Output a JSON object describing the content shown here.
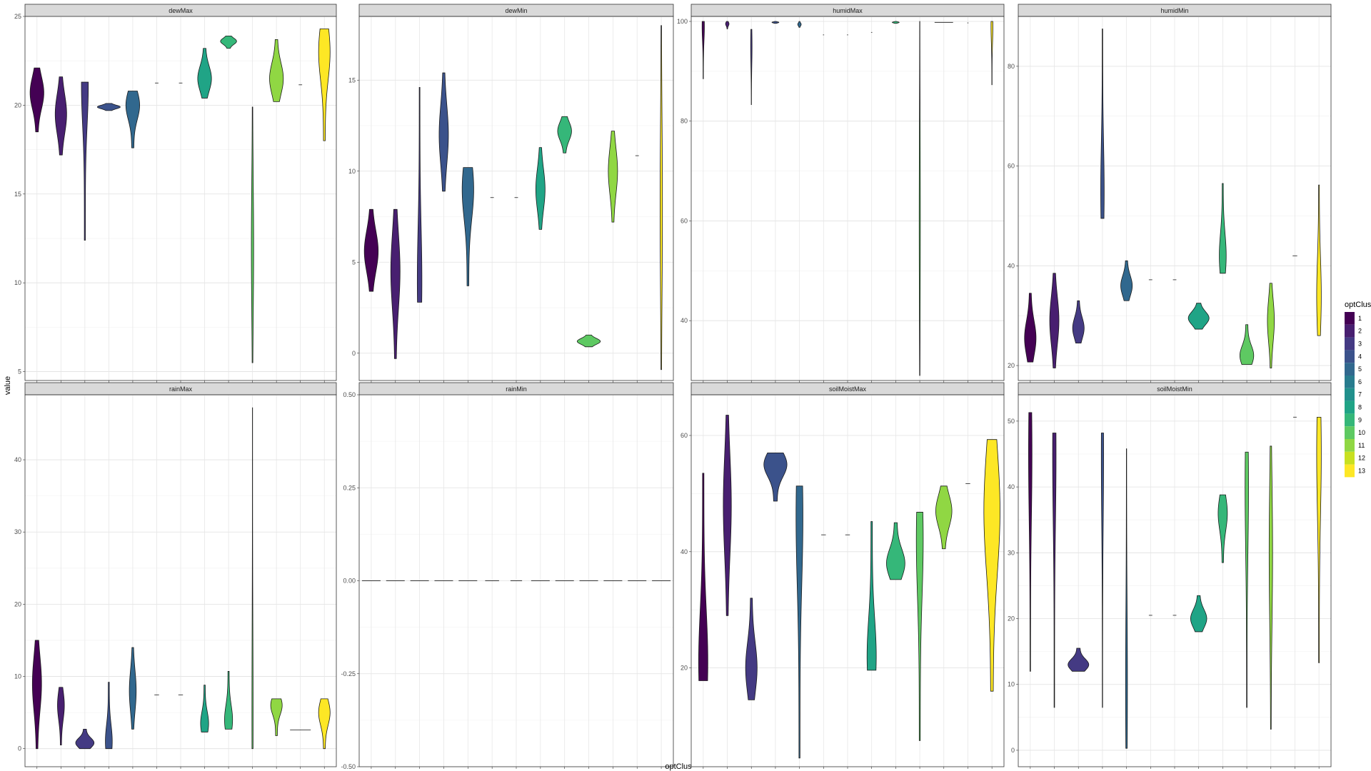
{
  "chart_data": {
    "type": "violin",
    "facet_variable": "variable",
    "xlabel": "optClus",
    "ylabel": "value",
    "legend": {
      "title": "optClus",
      "position": "right",
      "labels": [
        "1",
        "2",
        "3",
        "4",
        "5",
        "6",
        "7",
        "8",
        "9",
        "10",
        "11",
        "12",
        "13"
      ]
    },
    "clusters": [
      1,
      2,
      3,
      4,
      5,
      6,
      7,
      8,
      9,
      10,
      11,
      12,
      13
    ],
    "colors": [
      "#440154",
      "#481A6C",
      "#472F7D",
      "#414487",
      "#39568C",
      "#31688E",
      "#2A788E",
      "#23888E",
      "#1F988B",
      "#22A884",
      "#35B779",
      "#54C568",
      "#7AD151",
      "#A5DB36",
      "#D2E21B",
      "#FDE725"
    ],
    "cluster_colors": [
      "#440154",
      "#481F70",
      "#443A83",
      "#3B528B",
      "#31688E",
      "#287C8E",
      "#21908C",
      "#20A486",
      "#35B779",
      "#5EC962",
      "#90D743",
      "#C8E020",
      "#FDE725"
    ],
    "grid": true,
    "panels": [
      {
        "title": "dewMax",
        "ylim": [
          4.5,
          25
        ],
        "yticks": [
          5,
          10,
          15,
          20,
          25
        ],
        "yticklabels": [
          "5",
          "10",
          "15",
          "20",
          "25"
        ],
        "violins": [
          {
            "c": 1,
            "lo": 18.5,
            "hi": 22.1,
            "w": 0.6,
            "mode": 20.7
          },
          {
            "c": 2,
            "lo": 17.2,
            "hi": 21.6,
            "w": 0.5,
            "mode": 19.5
          },
          {
            "c": 3,
            "lo": 12.4,
            "hi": 21.3,
            "w": 0.3,
            "mode": 21.1
          },
          {
            "c": 4,
            "lo": 19.7,
            "hi": 20.1,
            "w": 1.0,
            "mode": 19.9
          },
          {
            "c": 5,
            "lo": 17.6,
            "hi": 20.8,
            "w": 0.6,
            "mode": 20.0
          },
          {
            "c": 6,
            "lo": 21.25,
            "hi": 21.3,
            "w": 0.15,
            "mode": 21.27
          },
          {
            "c": 7,
            "lo": 21.25,
            "hi": 21.3,
            "w": 0.15,
            "mode": 21.27
          },
          {
            "c": 8,
            "lo": 20.4,
            "hi": 23.2,
            "w": 0.6,
            "mode": 21.5
          },
          {
            "c": 9,
            "lo": 23.2,
            "hi": 23.9,
            "w": 0.7,
            "mode": 23.6
          },
          {
            "c": 10,
            "lo": 5.5,
            "hi": 19.9,
            "w": 0.1,
            "mode": 12.0
          },
          {
            "c": 11,
            "lo": 20.2,
            "hi": 23.7,
            "w": 0.6,
            "mode": 21.5
          },
          {
            "c": 12,
            "lo": 21.15,
            "hi": 21.2,
            "w": 0.15,
            "mode": 21.17
          },
          {
            "c": 13,
            "lo": 18.0,
            "hi": 24.3,
            "w": 0.5,
            "mode": 23.0
          }
        ]
      },
      {
        "title": "dewMin",
        "ylim": [
          -1.5,
          18.5
        ],
        "yticks": [
          0,
          5,
          10,
          15
        ],
        "yticklabels": [
          "0",
          "5",
          "10",
          "15"
        ],
        "violins": [
          {
            "c": 1,
            "lo": 3.4,
            "hi": 7.9,
            "w": 0.6,
            "mode": 5.6
          },
          {
            "c": 2,
            "lo": -0.3,
            "hi": 7.9,
            "w": 0.4,
            "mode": 4.5
          },
          {
            "c": 3,
            "lo": 2.8,
            "hi": 14.6,
            "w": 0.2,
            "mode": 4.0
          },
          {
            "c": 4,
            "lo": 8.9,
            "hi": 15.4,
            "w": 0.4,
            "mode": 12.0
          },
          {
            "c": 5,
            "lo": 3.7,
            "hi": 10.2,
            "w": 0.5,
            "mode": 9.0
          },
          {
            "c": 6,
            "lo": 8.55,
            "hi": 8.6,
            "w": 0.15,
            "mode": 8.57
          },
          {
            "c": 7,
            "lo": 8.55,
            "hi": 8.6,
            "w": 0.15,
            "mode": 8.57
          },
          {
            "c": 8,
            "lo": 6.8,
            "hi": 11.3,
            "w": 0.4,
            "mode": 9.0
          },
          {
            "c": 9,
            "lo": 11.0,
            "hi": 13.0,
            "w": 0.6,
            "mode": 12.2
          },
          {
            "c": 10,
            "lo": 0.35,
            "hi": 1.0,
            "w": 1.0,
            "mode": 0.65
          },
          {
            "c": 11,
            "lo": 7.2,
            "hi": 12.2,
            "w": 0.4,
            "mode": 10.0
          },
          {
            "c": 12,
            "lo": 10.85,
            "hi": 10.9,
            "w": 0.15,
            "mode": 10.87
          },
          {
            "c": 13,
            "lo": -0.9,
            "hi": 18.0,
            "w": 0.1,
            "mode": 8.0
          }
        ]
      },
      {
        "title": "humidMax",
        "ylim": [
          28,
          101
        ],
        "yticks": [
          40,
          60,
          80,
          100
        ],
        "yticklabels": [
          "40",
          "60",
          "80",
          "100"
        ],
        "violins": [
          {
            "c": 1,
            "lo": 88.5,
            "hi": 100,
            "w": 0.1,
            "mode": 99.0
          },
          {
            "c": 2,
            "lo": 98.5,
            "hi": 100,
            "w": 0.15,
            "mode": 99.5
          },
          {
            "c": 3,
            "lo": 83.3,
            "hi": 98.4,
            "w": 0.06,
            "mode": 95.0
          },
          {
            "c": 4,
            "lo": 99.6,
            "hi": 100,
            "w": 0.3,
            "mode": 99.8
          },
          {
            "c": 5,
            "lo": 98.8,
            "hi": 100,
            "w": 0.15,
            "mode": 99.4
          },
          {
            "c": 6,
            "lo": 97.3,
            "hi": 97.35,
            "w": 0.05,
            "mode": 97.32
          },
          {
            "c": 7,
            "lo": 97.3,
            "hi": 97.35,
            "w": 0.05,
            "mode": 97.32
          },
          {
            "c": 8,
            "lo": 97.8,
            "hi": 97.85,
            "w": 0.05,
            "mode": 97.82
          },
          {
            "c": 9,
            "lo": 99.6,
            "hi": 100,
            "w": 0.3,
            "mode": 99.8
          },
          {
            "c": 10,
            "lo": 29.0,
            "hi": 100,
            "w": 0.05,
            "mode": 60.0
          },
          {
            "c": 11,
            "lo": 99.8,
            "hi": 100,
            "w": 0.8,
            "mode": 99.9
          },
          {
            "c": 12,
            "lo": 99.7,
            "hi": 99.75,
            "w": 0.05,
            "mode": 99.72
          },
          {
            "c": 13,
            "lo": 87.3,
            "hi": 100,
            "w": 0.08,
            "mode": 99.0
          }
        ]
      },
      {
        "title": "humidMin",
        "ylim": [
          17,
          90
        ],
        "yticks": [
          20,
          40,
          60,
          80
        ],
        "yticklabels": [
          "20",
          "40",
          "60",
          "80"
        ],
        "violins": [
          {
            "c": 1,
            "lo": 20.7,
            "hi": 34.5,
            "w": 0.5,
            "mode": 25.5
          },
          {
            "c": 2,
            "lo": 19.5,
            "hi": 38.5,
            "w": 0.4,
            "mode": 29.0
          },
          {
            "c": 3,
            "lo": 24.5,
            "hi": 33.0,
            "w": 0.5,
            "mode": 27.5
          },
          {
            "c": 4,
            "lo": 49.5,
            "hi": 87.5,
            "w": 0.15,
            "mode": 55.0
          },
          {
            "c": 5,
            "lo": 33.0,
            "hi": 41.0,
            "w": 0.5,
            "mode": 36.0
          },
          {
            "c": 6,
            "lo": 37.2,
            "hi": 37.25,
            "w": 0.15,
            "mode": 37.22
          },
          {
            "c": 7,
            "lo": 37.2,
            "hi": 37.25,
            "w": 0.15,
            "mode": 37.22
          },
          {
            "c": 8,
            "lo": 27.3,
            "hi": 32.5,
            "w": 0.9,
            "mode": 29.5
          },
          {
            "c": 9,
            "lo": 38.5,
            "hi": 56.5,
            "w": 0.3,
            "mode": 42.0
          },
          {
            "c": 10,
            "lo": 20.2,
            "hi": 28.2,
            "w": 0.6,
            "mode": 22.0
          },
          {
            "c": 11,
            "lo": 19.5,
            "hi": 36.5,
            "w": 0.3,
            "mode": 29.0
          },
          {
            "c": 12,
            "lo": 42.0,
            "hi": 42.05,
            "w": 0.2,
            "mode": 42.02
          },
          {
            "c": 13,
            "lo": 26.0,
            "hi": 56.2,
            "w": 0.2,
            "mode": 34.0
          }
        ]
      },
      {
        "title": "rainMax",
        "ylim": [
          -2.5,
          49
        ],
        "yticks": [
          0,
          10,
          20,
          30,
          40
        ],
        "yticklabels": [
          "0",
          "10",
          "20",
          "30",
          "40"
        ],
        "violins": [
          {
            "c": 1,
            "lo": 0,
            "hi": 15.0,
            "w": 0.4,
            "mode": 9.0
          },
          {
            "c": 2,
            "lo": 0.5,
            "hi": 8.5,
            "w": 0.3,
            "mode": 6.0
          },
          {
            "c": 3,
            "lo": 0,
            "hi": 2.7,
            "w": 0.8,
            "mode": 0.8
          },
          {
            "c": 4,
            "lo": 0,
            "hi": 9.2,
            "w": 0.3,
            "mode": 1.0
          },
          {
            "c": 5,
            "lo": 2.7,
            "hi": 14.0,
            "w": 0.3,
            "mode": 8.0
          },
          {
            "c": 6,
            "lo": 7.45,
            "hi": 7.5,
            "w": 0.2,
            "mode": 7.47
          },
          {
            "c": 7,
            "lo": 7.45,
            "hi": 7.5,
            "w": 0.2,
            "mode": 7.47
          },
          {
            "c": 8,
            "lo": 2.3,
            "hi": 8.8,
            "w": 0.35,
            "mode": 3.5
          },
          {
            "c": 9,
            "lo": 2.7,
            "hi": 10.7,
            "w": 0.35,
            "mode": 4.0
          },
          {
            "c": 10,
            "lo": 0,
            "hi": 47.2,
            "w": 0.05,
            "mode": 5.0
          },
          {
            "c": 11,
            "lo": 1.8,
            "hi": 6.9,
            "w": 0.5,
            "mode": 6.0
          },
          {
            "c": 12,
            "lo": 2.6,
            "hi": 2.65,
            "w": 0.9,
            "mode": 2.62
          },
          {
            "c": 13,
            "lo": 0,
            "hi": 6.9,
            "w": 0.5,
            "mode": 5.0
          }
        ]
      },
      {
        "title": "rainMin",
        "ylim": [
          -0.5,
          0.5
        ],
        "yticks": [
          -0.5,
          -0.25,
          0,
          0.25,
          0.5
        ],
        "yticklabels": [
          "-0.50",
          "-0.25",
          "0.00",
          "0.25",
          "0.50"
        ],
        "violins": [
          {
            "c": 1,
            "lo": 0,
            "hi": 0.001,
            "w": 0.8,
            "mode": 0
          },
          {
            "c": 2,
            "lo": 0,
            "hi": 0.001,
            "w": 0.8,
            "mode": 0
          },
          {
            "c": 3,
            "lo": 0,
            "hi": 0.001,
            "w": 0.8,
            "mode": 0
          },
          {
            "c": 4,
            "lo": 0,
            "hi": 0.001,
            "w": 0.8,
            "mode": 0
          },
          {
            "c": 5,
            "lo": 0,
            "hi": 0.001,
            "w": 0.8,
            "mode": 0
          },
          {
            "c": 6,
            "lo": 0,
            "hi": 0.001,
            "w": 0.6,
            "mode": 0
          },
          {
            "c": 7,
            "lo": 0,
            "hi": 0.001,
            "w": 0.5,
            "mode": 0
          },
          {
            "c": 8,
            "lo": 0,
            "hi": 0.001,
            "w": 0.8,
            "mode": 0
          },
          {
            "c": 9,
            "lo": 0,
            "hi": 0.001,
            "w": 0.8,
            "mode": 0
          },
          {
            "c": 10,
            "lo": 0,
            "hi": 0.001,
            "w": 0.8,
            "mode": 0
          },
          {
            "c": 11,
            "lo": 0,
            "hi": 0.001,
            "w": 0.8,
            "mode": 0
          },
          {
            "c": 12,
            "lo": 0,
            "hi": 0.001,
            "w": 0.8,
            "mode": 0
          },
          {
            "c": 13,
            "lo": 0,
            "hi": 0.001,
            "w": 0.8,
            "mode": 0
          }
        ]
      },
      {
        "title": "soilMoistMax",
        "ylim": [
          3,
          67
        ],
        "yticks": [
          20,
          40,
          60
        ],
        "yticklabels": [
          "20",
          "40",
          "60"
        ],
        "violins": [
          {
            "c": 1,
            "lo": 17.8,
            "hi": 53.5,
            "w": 0.4,
            "mode": 21.0
          },
          {
            "c": 2,
            "lo": 29.0,
            "hi": 63.5,
            "w": 0.35,
            "mode": 48.0
          },
          {
            "c": 3,
            "lo": 14.5,
            "hi": 32.0,
            "w": 0.5,
            "mode": 20.0
          },
          {
            "c": 4,
            "lo": 48.7,
            "hi": 57.0,
            "w": 1.0,
            "mode": 55.0
          },
          {
            "c": 5,
            "lo": 4.5,
            "hi": 51.3,
            "w": 0.3,
            "mode": 46.0
          },
          {
            "c": 6,
            "lo": 42.9,
            "hi": 42.95,
            "w": 0.2,
            "mode": 42.92
          },
          {
            "c": 7,
            "lo": 42.9,
            "hi": 42.95,
            "w": 0.2,
            "mode": 42.92
          },
          {
            "c": 8,
            "lo": 19.6,
            "hi": 45.2,
            "w": 0.4,
            "mode": 22.0
          },
          {
            "c": 9,
            "lo": 35.2,
            "hi": 45.0,
            "w": 0.8,
            "mode": 38.0
          },
          {
            "c": 10,
            "lo": 7.5,
            "hi": 46.8,
            "w": 0.3,
            "mode": 42.0
          },
          {
            "c": 11,
            "lo": 40.5,
            "hi": 51.3,
            "w": 0.7,
            "mode": 47.0
          },
          {
            "c": 12,
            "lo": 51.7,
            "hi": 51.75,
            "w": 0.2,
            "mode": 51.72
          },
          {
            "c": 13,
            "lo": 16.0,
            "hi": 59.3,
            "w": 0.7,
            "mode": 47.0
          }
        ]
      },
      {
        "title": "soilMoistMin",
        "ylim": [
          -2.5,
          54
        ],
        "yticks": [
          0,
          10,
          20,
          30,
          40,
          50
        ],
        "yticklabels": [
          "0",
          "10",
          "20",
          "30",
          "40",
          "50"
        ],
        "violins": [
          {
            "c": 1,
            "lo": 12.0,
            "hi": 51.3,
            "w": 0.15,
            "mode": 45.0
          },
          {
            "c": 2,
            "lo": 6.5,
            "hi": 48.2,
            "w": 0.15,
            "mode": 45.0
          },
          {
            "c": 3,
            "lo": 12.0,
            "hi": 15.5,
            "w": 0.9,
            "mode": 13.0
          },
          {
            "c": 4,
            "lo": 6.5,
            "hi": 48.2,
            "w": 0.1,
            "mode": 45.0
          },
          {
            "c": 5,
            "lo": 0.3,
            "hi": 45.8,
            "w": 0.08,
            "mode": 10.0
          },
          {
            "c": 6,
            "lo": 20.5,
            "hi": 20.55,
            "w": 0.15,
            "mode": 20.52
          },
          {
            "c": 7,
            "lo": 20.5,
            "hi": 20.55,
            "w": 0.15,
            "mode": 20.52
          },
          {
            "c": 8,
            "lo": 18.0,
            "hi": 23.5,
            "w": 0.7,
            "mode": 20.0
          },
          {
            "c": 9,
            "lo": 28.5,
            "hi": 38.8,
            "w": 0.4,
            "mode": 36.0
          },
          {
            "c": 10,
            "lo": 6.5,
            "hi": 45.3,
            "w": 0.15,
            "mode": 40.0
          },
          {
            "c": 11,
            "lo": 3.2,
            "hi": 46.2,
            "w": 0.15,
            "mode": 30.0
          },
          {
            "c": 12,
            "lo": 50.6,
            "hi": 50.65,
            "w": 0.15,
            "mode": 50.62
          },
          {
            "c": 13,
            "lo": 13.3,
            "hi": 50.6,
            "w": 0.2,
            "mode": 45.0
          }
        ]
      }
    ]
  }
}
